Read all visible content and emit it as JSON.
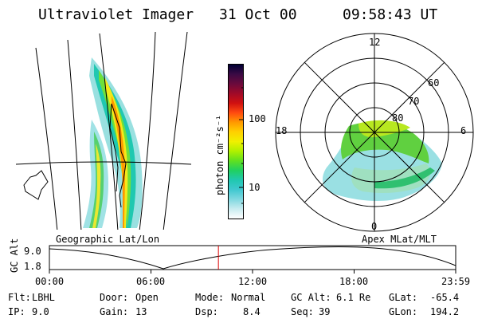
{
  "header": {
    "instrument": "Ultraviolet Imager",
    "date": "31 Oct 00",
    "time": "09:58:43 UT"
  },
  "left_panel": {
    "caption": "Geographic Lat/Lon"
  },
  "right_panel": {
    "caption": "Apex MLat/MLT",
    "mlt_labels": [
      "12",
      "18",
      "6",
      "0"
    ],
    "lat_labels": [
      "60",
      "70",
      "80"
    ]
  },
  "colorbar": {
    "unit_label": "photon cm⁻²s⁻¹",
    "tick_labels": [
      "100",
      "10"
    ],
    "colors": [
      "#000033",
      "#3a0a44",
      "#6a0a3c",
      "#a00a28",
      "#d01010",
      "#ff4a10",
      "#ff9900",
      "#ffd000",
      "#f0f000",
      "#b0f000",
      "#60e020",
      "#20d060",
      "#20c8b0",
      "#40c8d0",
      "#80d8e0",
      "#c8ecf0",
      "#ffffff"
    ]
  },
  "timeline": {
    "ylabel": "GC Alt",
    "ymax_label": "9.0",
    "ymin_label": "1.8",
    "x_labels": [
      "00:00",
      "06:00",
      "12:00",
      "18:00",
      "23:59"
    ],
    "current_time_fraction": 0.416,
    "marker_color": "#dd0000"
  },
  "footer": {
    "flt_label": "Flt:",
    "flt_value": "LBHL",
    "ip_label": "IP:",
    "ip_value": "9.0",
    "door_label": "Door:",
    "door_value": "Open",
    "gain_label": "Gain:",
    "gain_value": "13",
    "mode_label": "Mode:",
    "mode_value": "Normal",
    "dsp_label": "Dsp:",
    "dsp_value": "8.4",
    "gcalt_label": "GC Alt:",
    "gcalt_value": "6.1 Re",
    "seq_label": "Seq:",
    "seq_value": "39",
    "glat_label": "GLat:",
    "glat_value": "-65.4",
    "glon_label": "GLon:",
    "glon_value": "194.2"
  }
}
